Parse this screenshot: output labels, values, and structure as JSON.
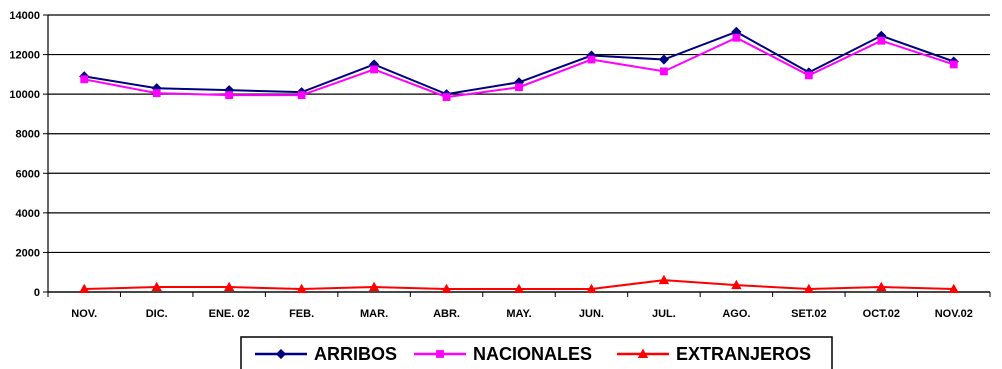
{
  "chart_data": {
    "type": "line",
    "categories": [
      "NOV.",
      "DIC.",
      "ENE. 02",
      "FEB.",
      "MAR.",
      "ABR.",
      "MAY.",
      "JUN.",
      "JUL.",
      "AGO.",
      "SET.02",
      "OCT.02",
      "NOV.02"
    ],
    "series": [
      {
        "name": "ARRIBOS",
        "color": "#000080",
        "marker": "diamond",
        "values": [
          10900,
          10300,
          10200,
          10100,
          11500,
          10000,
          10600,
          11950,
          11750,
          13150,
          11100,
          12950,
          11650
        ]
      },
      {
        "name": "NACIONALES",
        "color": "#ff00ff",
        "marker": "square",
        "values": [
          10750,
          10050,
          9950,
          9950,
          11250,
          9850,
          10350,
          11750,
          11150,
          12850,
          10950,
          12700,
          11500
        ]
      },
      {
        "name": "EXTRANJEROS",
        "color": "#ff0000",
        "marker": "triangle",
        "values": [
          150,
          250,
          250,
          150,
          250,
          150,
          150,
          150,
          600,
          350,
          150,
          250,
          150
        ]
      }
    ],
    "ylim": [
      0,
      14000
    ],
    "yticks": [
      "0",
      "2000",
      "4000",
      "6000",
      "8000",
      "10000",
      "12000",
      "14000"
    ],
    "grid": true,
    "legend_position": "bottom"
  }
}
